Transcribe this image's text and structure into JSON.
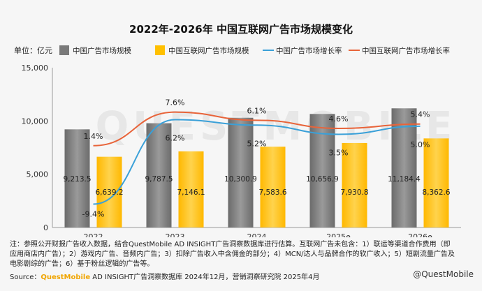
{
  "chart_data": {
    "type": "bar",
    "title": "2022年-2026年 中国互联网广告市场规模变化",
    "unit_label": "单位：亿元",
    "categories": [
      "2022",
      "2023",
      "2024",
      "2025e",
      "2026e"
    ],
    "series": [
      {
        "name": "中国广告市场规模",
        "type": "bar",
        "color": "#7a7a7a",
        "values": [
          9213.5,
          9787.5,
          10300.9,
          10656.9,
          11184.4
        ],
        "labels": [
          "9,213.5",
          "9,787.5",
          "10,300.9",
          "10,656.9",
          "11,184.4"
        ]
      },
      {
        "name": "中国互联网广告市场规模",
        "type": "bar",
        "color": "#ffc000",
        "values": [
          6639.2,
          7146.1,
          7583.6,
          7930.8,
          8362.6
        ],
        "labels": [
          "6,639.2",
          "7,146.1",
          "7,583.6",
          "7,930.8",
          "8,362.6"
        ]
      },
      {
        "name": "中国广告市场增长率",
        "type": "line",
        "color": "#3aa0d8",
        "values": [
          -9.4,
          6.2,
          5.2,
          3.5,
          5.0
        ],
        "labels": [
          "-9.4%",
          "6.2%",
          "5.2%",
          "3.5%",
          "5.0%"
        ]
      },
      {
        "name": "中国互联网广告市场增长率",
        "type": "line",
        "color": "#e8643a",
        "values": [
          1.4,
          7.6,
          6.1,
          4.6,
          5.4
        ],
        "labels": [
          "1.4%",
          "7.6%",
          "6.1%",
          "4.6%",
          "5.4%"
        ]
      }
    ],
    "ylim": [
      0,
      15000
    ],
    "yticks": [
      "0",
      "5,000",
      "10,000",
      "15,000"
    ],
    "legend_position": "top",
    "grid": false
  },
  "notes": "注：参照公开财报广告收入数据，结合QuestMobile AD INSIGHT广告洞察数据库进行估算。互联网广告未包含：1）联运等渠道合作费用（即应用商店内广告）；2）游戏内广告、音频内广告；3）扣除广告收入中含佣金的部分；4）MCN/达人与品牌合作的软广收入；5）短剧流量广告及电影剧综的广告；6）基于粉丝逻辑的广告等。",
  "source": {
    "prefix": "Source：",
    "brand": "QuestMobile",
    "rest": " AD INSIGHT广告洞察数据库 2024年12月，营销洞察研究院 2025年4月"
  },
  "credit": "@QuestMobile",
  "watermark": "QUESTMOBILE"
}
